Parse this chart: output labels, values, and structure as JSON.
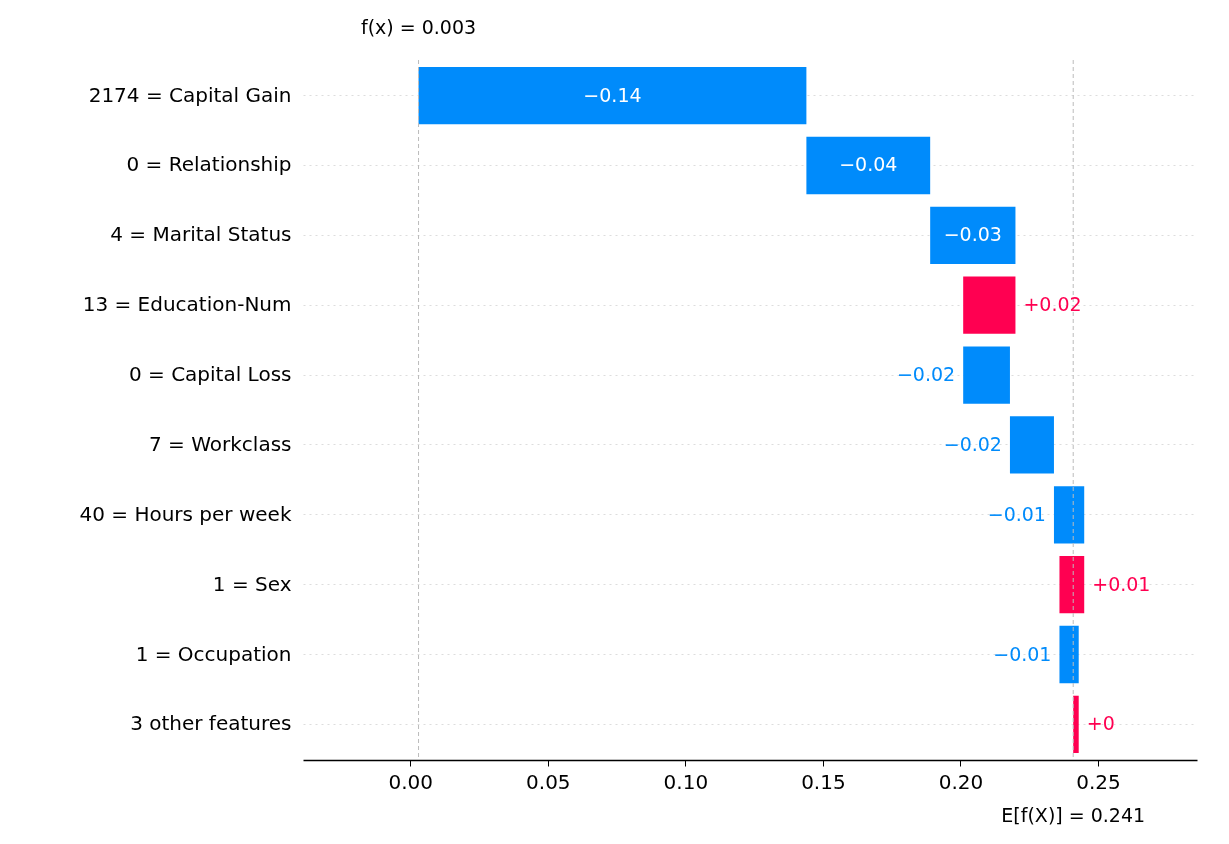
{
  "chart_data": {
    "type": "bar",
    "orientation": "horizontal",
    "categories": [
      "2174 = Capital Gain",
      "0 = Relationship",
      "4 = Marital Status",
      "13 = Education-Num",
      "0 = Capital Loss",
      "7 = Workclass",
      "40 = Hours per week",
      "1 = Sex",
      "1 = Occupation",
      "3 other features"
    ],
    "values": [
      -0.141,
      -0.045,
      -0.031,
      0.019,
      -0.017,
      -0.016,
      -0.011,
      0.009,
      -0.007,
      0.002
    ],
    "base": [
      0.144,
      0.189,
      0.22,
      0.201,
      0.218,
      0.234,
      0.245,
      0.236,
      0.243,
      0.241
    ],
    "colors": [
      "#008bfb",
      "#008bfb",
      "#008bfb",
      "#ff0051",
      "#008bfb",
      "#008bfb",
      "#008bfb",
      "#ff0051",
      "#008bfb",
      "#ff0051"
    ],
    "value_labels": [
      "−0.14",
      "−0.04",
      "−0.03",
      "+0.02",
      "−0.02",
      "−0.02",
      "−0.01",
      "+0.01",
      "−0.01",
      "+0"
    ],
    "xlim": [
      -0.039,
      0.286
    ],
    "xticks": [
      {
        "value": 0,
        "label": "0.00"
      },
      {
        "value": 0.05,
        "label": "0.05"
      },
      {
        "value": 0.1,
        "label": "0.10"
      },
      {
        "value": 0.15,
        "label": "0.15"
      },
      {
        "value": 0.2,
        "label": "0.20"
      },
      {
        "value": 0.25,
        "label": "0.25"
      }
    ],
    "ref_lines": [
      {
        "axis": "x",
        "value": 0.003,
        "label": "f(x) = 0.003",
        "color": "#bbbbbb",
        "line_style": "dashed"
      },
      {
        "axis": "x",
        "value": 0.241,
        "label": "E[f(X)] = 0.241",
        "color": "#bbbbbb",
        "line_style": "dashed"
      }
    ],
    "grid": "y"
  }
}
